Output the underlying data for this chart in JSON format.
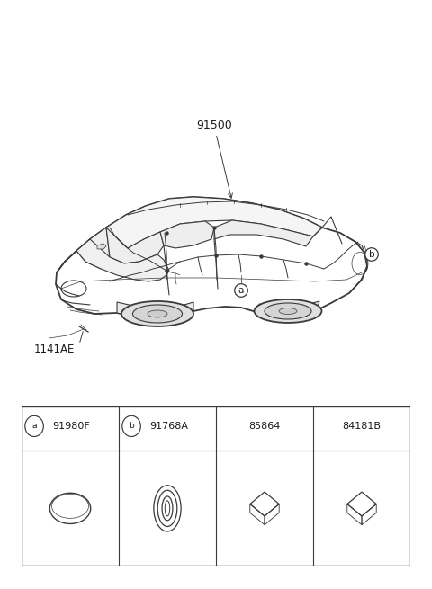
{
  "bg_color": "#ffffff",
  "fig_width": 4.8,
  "fig_height": 6.55,
  "dpi": 100,
  "car_label": "91500",
  "bolt_label": "1141AE",
  "label_a": "a",
  "label_b": "b",
  "parts": [
    {
      "id": "a",
      "part_num": "91980F"
    },
    {
      "id": "b",
      "part_num": "91768A"
    },
    {
      "id": "",
      "part_num": "85864"
    },
    {
      "id": "",
      "part_num": "84181B"
    }
  ],
  "line_color": "#3a3a3a",
  "text_color": "#1a1a1a",
  "lw_body": 1.3,
  "lw_detail": 0.8,
  "lw_wire": 0.7,
  "lw_thin": 0.5
}
